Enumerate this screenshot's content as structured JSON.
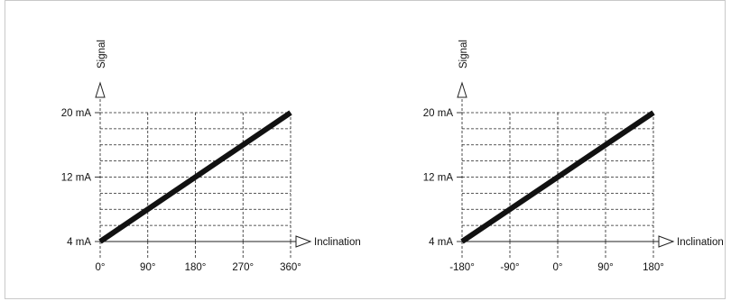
{
  "chart_data": [
    {
      "type": "line",
      "xlabel": "Inclination",
      "ylabel": "Signal",
      "x_ticks": [
        "0°",
        "90°",
        "180°",
        "270°",
        "360°"
      ],
      "y_ticks": [
        "4 mA",
        "12 mA",
        "20 mA"
      ],
      "x_values": [
        0,
        90,
        180,
        270,
        360
      ],
      "xlim": [
        0,
        360
      ],
      "ylim": [
        4,
        20
      ],
      "y_tick_values": [
        4,
        12,
        20
      ],
      "series": [
        {
          "x": [
            0,
            360
          ],
          "y": [
            4,
            20
          ]
        }
      ],
      "grid": true
    },
    {
      "type": "line",
      "xlabel": "Inclination",
      "ylabel": "Signal",
      "x_ticks": [
        "-180°",
        "-90°",
        "0°",
        "90°",
        "180°"
      ],
      "y_ticks": [
        "4 mA",
        "12 mA",
        "20 mA"
      ],
      "x_values": [
        -180,
        -90,
        0,
        90,
        180
      ],
      "xlim": [
        -180,
        180
      ],
      "ylim": [
        4,
        20
      ],
      "y_tick_values": [
        4,
        12,
        20
      ],
      "series": [
        {
          "x": [
            -180,
            180
          ],
          "y": [
            4,
            20
          ]
        }
      ],
      "grid": true
    }
  ]
}
